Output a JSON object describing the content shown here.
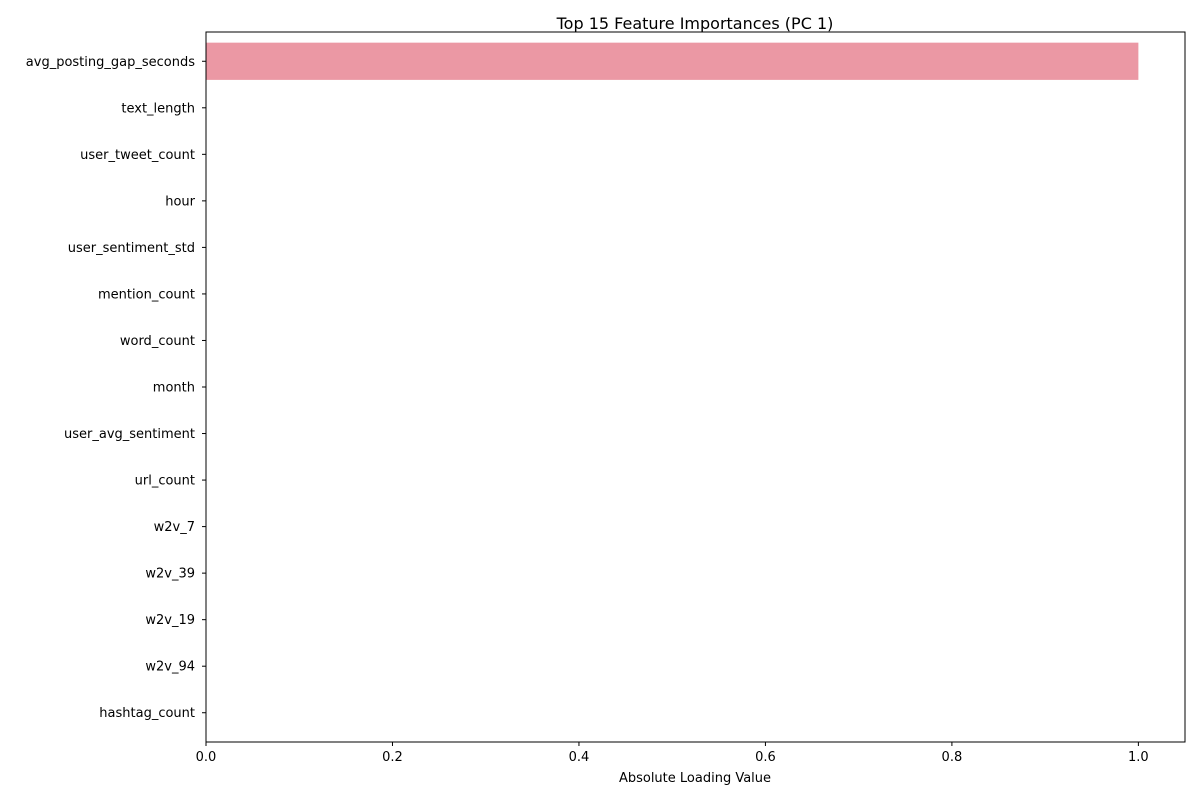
{
  "chart_data": {
    "type": "bar",
    "orientation": "horizontal",
    "title": "Top 15 Feature Importances (PC 1)",
    "xlabel": "Absolute Loading Value",
    "ylabel": "",
    "xlim": [
      0,
      1.05
    ],
    "xticks": [
      "0.0",
      "0.2",
      "0.4",
      "0.6",
      "0.8",
      "1.0"
    ],
    "grid": false,
    "bar_color": "#eb98a4",
    "categories": [
      "avg_posting_gap_seconds",
      "text_length",
      "user_tweet_count",
      "hour",
      "user_sentiment_std",
      "mention_count",
      "word_count",
      "month",
      "user_avg_sentiment",
      "url_count",
      "w2v_7",
      "w2v_39",
      "w2v_19",
      "w2v_94",
      "hashtag_count"
    ],
    "values": [
      1.0,
      2e-05,
      1e-05,
      5e-06,
      4e-06,
      3e-06,
      3e-06,
      2e-06,
      2e-06,
      1e-06,
      1e-06,
      1e-06,
      1e-06,
      1e-06,
      1e-06
    ]
  }
}
